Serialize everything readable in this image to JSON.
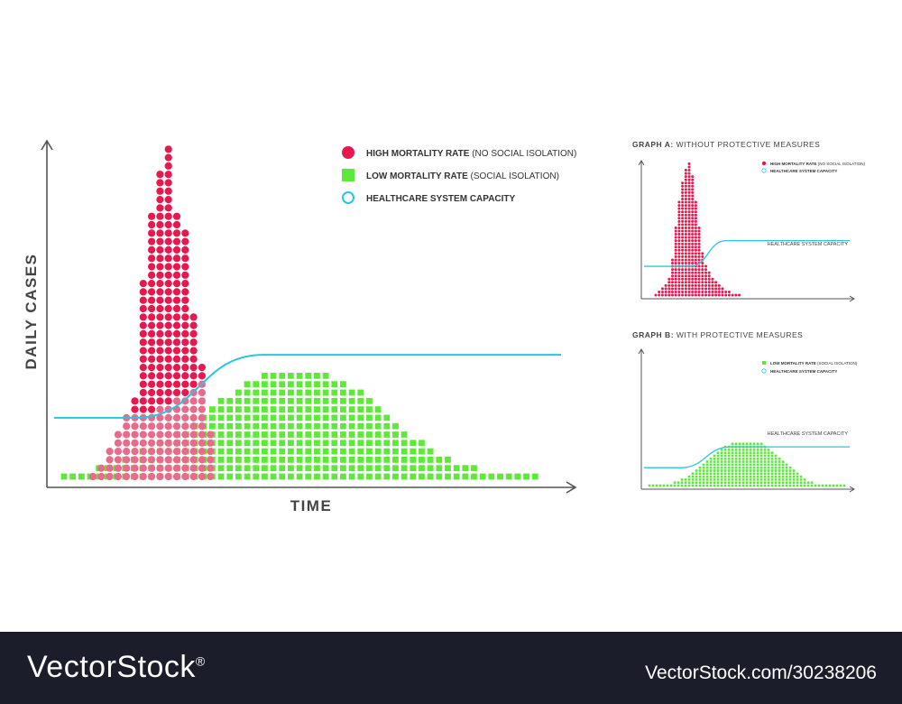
{
  "colors": {
    "high": "#e8184f",
    "high_overlap": "#ea6a8c",
    "low": "#5ee93a",
    "capacity": "#29c6dc",
    "axis": "#444444",
    "footer": "#1b1d2a"
  },
  "main": {
    "ylabel": "DAILY CASES",
    "xlabel": "TIME",
    "legend": [
      {
        "bold": "HIGH MORTALITY RATE",
        "rest": " (NO SOCIAL ISOLATION)",
        "marker": "circle",
        "color_key": "high"
      },
      {
        "bold": "LOW MORTALITY RATE",
        "rest": " (SOCIAL ISOLATION)",
        "marker": "square",
        "color_key": "low"
      },
      {
        "bold": "HEALTHCARE SYSTEM CAPACITY",
        "rest": "",
        "marker": "ring",
        "color_key": "capacity"
      }
    ]
  },
  "graph_a": {
    "title_bold": "GRAPH A:",
    "title_rest": " WITHOUT PROTECTIVE MEASURES",
    "capacity_label": "HEALTHCARE SYSTEM CAPACITY",
    "legend": [
      {
        "bold": "HIGH MORTALITY RATE",
        "rest": " (NO SOCIAL ISOLATION)",
        "marker": "dot",
        "color_key": "high"
      },
      {
        "bold": "HEALTHCARE SYSTEM CAPACITY",
        "rest": "",
        "marker": "ring",
        "color_key": "capacity"
      }
    ]
  },
  "graph_b": {
    "title_bold": "GRAPH B:",
    "title_rest": " WITH PROTECTIVE MEASURES",
    "capacity_label": "HEALTHCARE SYSTEM CAPACITY",
    "legend": [
      {
        "bold": "LOW MORTALITY RATE",
        "rest": " (SOCIAL ISOLATION)",
        "marker": "sq",
        "color_key": "low"
      },
      {
        "bold": "HEALTHCARE SYSTEM CAPACITY",
        "rest": "",
        "marker": "ring",
        "color_key": "capacity"
      }
    ]
  },
  "chart_data": [
    {
      "type": "scatter",
      "xlabel": "TIME",
      "ylabel": "DAILY CASES",
      "legend_position": "top-right",
      "series": [
        {
          "name": "HIGH MORTALITY RATE (NO SOCIAL ISOLATION)",
          "marker": "circle",
          "values": [
            1,
            2,
            4,
            6,
            8,
            10,
            24,
            32,
            37,
            40,
            32,
            30,
            20,
            14,
            6
          ]
        },
        {
          "name": "LOW MORTALITY RATE (SOCIAL ISOLATION)",
          "marker": "square",
          "values": [
            1,
            1,
            1,
            1,
            2,
            2,
            2,
            3,
            3,
            4,
            4,
            5,
            5,
            6,
            6,
            7,
            8,
            9,
            10,
            10,
            11,
            12,
            12,
            13,
            13,
            13,
            13,
            13,
            13,
            13,
            13,
            12,
            12,
            11,
            11,
            10,
            9,
            8,
            7,
            6,
            5,
            5,
            4,
            3,
            3,
            2,
            2,
            2,
            1,
            1,
            1,
            1,
            1,
            1,
            1
          ]
        },
        {
          "name": "HEALTHCARE SYSTEM CAPACITY",
          "type": "line",
          "capacity_low": 7.0,
          "capacity_high": 14.5
        }
      ]
    },
    {
      "type": "scatter",
      "title": "GRAPH A: WITHOUT PROTECTIVE MEASURES",
      "series": [
        {
          "name": "HIGH MORTALITY RATE (NO SOCIAL ISOLATION)",
          "marker": "circle",
          "values": [
            1,
            2,
            3,
            4,
            6,
            12,
            22,
            30,
            36,
            40,
            42,
            38,
            30,
            22,
            14,
            10,
            8,
            6,
            5,
            4,
            3,
            2,
            2,
            1,
            1,
            1
          ]
        },
        {
          "name": "HEALTHCARE SYSTEM CAPACITY",
          "type": "line",
          "capacity_low": 9,
          "capacity_high": 17
        }
      ]
    },
    {
      "type": "scatter",
      "title": "GRAPH B: WITH PROTECTIVE MEASURES",
      "series": [
        {
          "name": "LOW MORTALITY RATE (SOCIAL ISOLATION)",
          "marker": "square",
          "values": [
            1,
            1,
            1,
            1,
            1,
            1,
            1,
            2,
            2,
            3,
            3,
            4,
            5,
            6,
            7,
            8,
            9,
            10,
            11,
            12,
            13,
            14,
            14,
            15,
            15,
            15,
            15,
            15,
            15,
            15,
            15,
            15,
            14,
            13,
            12,
            11,
            10,
            9,
            8,
            7,
            6,
            5,
            4,
            3,
            2,
            2,
            1,
            1,
            1,
            1,
            1,
            1,
            1,
            1,
            1
          ]
        },
        {
          "name": "HEALTHCARE SYSTEM CAPACITY",
          "type": "line",
          "capacity_low": 6,
          "capacity_high": 13
        }
      ]
    }
  ],
  "footer": {
    "brand": "VectorStock",
    "registered": "®",
    "id": "VectorStock.com/30238206"
  }
}
